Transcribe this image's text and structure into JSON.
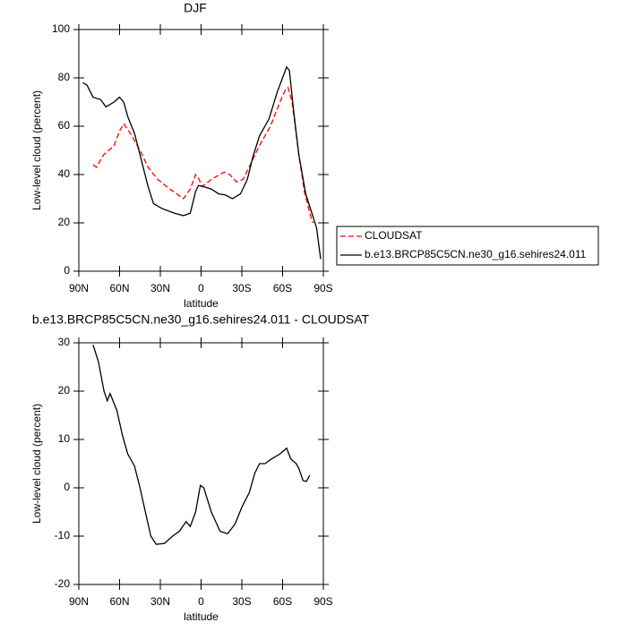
{
  "chart_data": [
    {
      "type": "line",
      "title": "DJF",
      "xlabel": "latitude",
      "ylabel": "Low-level cloud (percent)",
      "xlim": [
        90,
        -90
      ],
      "ylim": [
        0,
        100
      ],
      "xticks": [
        {
          "value": 90,
          "label": "90N"
        },
        {
          "value": 60,
          "label": "60N"
        },
        {
          "value": 30,
          "label": "30N"
        },
        0,
        {
          "value": -30,
          "label": "30S"
        },
        {
          "value": -60,
          "label": "60S"
        },
        {
          "value": -90,
          "label": "90S"
        }
      ],
      "yticks": [
        0,
        20,
        40,
        60,
        80,
        100
      ],
      "legend": "right",
      "series": [
        {
          "name": "CLOUDSAT",
          "color": "#ff0000",
          "line_style": "dashed",
          "x": [
            79.5,
            77,
            72,
            68,
            64,
            60,
            57,
            52,
            45,
            39,
            32,
            23,
            13,
            8,
            4,
            1.5,
            -1,
            -7.5,
            -17,
            -21,
            -26,
            -31,
            -37,
            -43,
            -51,
            -58,
            -62,
            -64,
            -67,
            -72,
            -76,
            -81,
            -82.5
          ],
          "values": [
            44,
            43,
            48,
            50,
            52,
            58,
            61,
            57,
            50,
            43,
            38,
            34,
            30,
            34,
            40,
            38,
            35,
            38,
            41,
            40,
            37,
            38,
            45,
            52,
            60,
            70,
            75,
            76,
            70,
            48,
            33,
            22,
            20
          ]
        },
        {
          "name": "b.e13.BRCP85C5CN.ne30_g16.sehires24.011",
          "color": "#000000",
          "line_style": "solid",
          "x": [
            87,
            84,
            79.5,
            74,
            70,
            67,
            64,
            60,
            57,
            54,
            49,
            44,
            39,
            35,
            29,
            19.5,
            13,
            8,
            4,
            2,
            -2,
            -7.5,
            -13,
            -18,
            -23,
            -29,
            -34,
            -38,
            -43,
            -50,
            -56,
            -62,
            -63,
            -65,
            -68,
            -72,
            -77,
            -81,
            -85,
            -88
          ],
          "values": [
            78,
            77,
            72,
            71,
            68,
            69,
            70,
            72,
            70,
            64,
            57,
            46,
            35,
            28,
            26,
            24,
            23,
            24,
            33,
            35.5,
            35,
            34,
            32,
            31.5,
            30,
            32,
            38,
            47,
            56,
            63,
            74,
            83,
            84.5,
            83,
            67,
            48,
            32,
            25,
            18,
            5
          ]
        }
      ]
    },
    {
      "type": "line",
      "title": "b.e13.BRCP85C5CN.ne30_g16.sehires24.011 - CLOUDSAT",
      "xlabel": "latitude",
      "ylabel": "Low-level cloud (percent)",
      "xlim": [
        90,
        -90
      ],
      "ylim": [
        -20,
        30
      ],
      "xticks": [
        {
          "value": 90,
          "label": "90N"
        },
        {
          "value": 60,
          "label": "60N"
        },
        {
          "value": 30,
          "label": "30N"
        },
        0,
        {
          "value": -30,
          "label": "30S"
        },
        {
          "value": -60,
          "label": "60S"
        },
        {
          "value": -90,
          "label": "90S"
        }
      ],
      "yticks": [
        -20,
        -10,
        0,
        10,
        20,
        30
      ],
      "series": [
        {
          "color": "#000000",
          "line_style": "solid",
          "x": [
            79.5,
            75.5,
            71.5,
            69,
            67,
            62,
            58,
            54,
            49,
            45,
            41,
            37,
            33,
            27,
            21,
            16,
            11,
            8,
            4,
            0.5,
            -2,
            -7.5,
            -14,
            -19.5,
            -25,
            -30,
            -35.5,
            -39.5,
            -43,
            -47,
            -52,
            -58,
            -63,
            -66,
            -70,
            -72,
            -75,
            -77.5,
            -80
          ],
          "values": [
            29.6,
            26,
            20,
            18,
            19.5,
            16,
            11,
            7,
            4.5,
            0,
            -5,
            -10,
            -11.7,
            -11.5,
            -10,
            -9,
            -7,
            -8,
            -5,
            0.5,
            0,
            -5,
            -9,
            -9.5,
            -7.5,
            -4,
            -1,
            3,
            5,
            5,
            6,
            7,
            8.2,
            6,
            5,
            4,
            1.5,
            1.3,
            2.6
          ]
        }
      ]
    }
  ]
}
